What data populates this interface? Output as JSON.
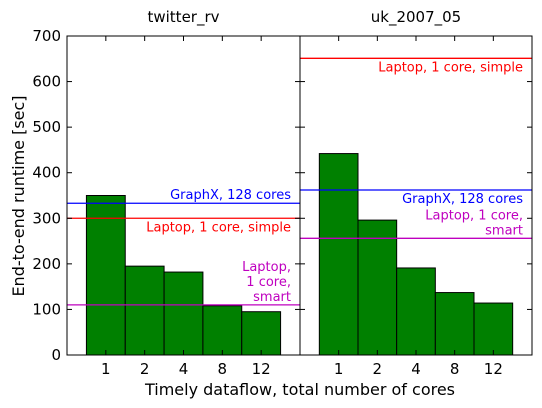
{
  "chart_data": {
    "type": "bar",
    "ylabel": "End-to-end runtime [sec]",
    "xlabel": "Timely dataflow, total number of cores",
    "ylim": [
      0,
      700
    ],
    "yticks": [
      0,
      100,
      200,
      300,
      400,
      500,
      600,
      700
    ],
    "categories": [
      "1",
      "2",
      "4",
      "8",
      "12"
    ],
    "bar_color": "#008000",
    "panels": [
      {
        "title": "twitter_rv",
        "values": [
          350,
          195,
          182,
          108,
          95
        ],
        "reference_lines": [
          {
            "label": "GraphX, 128 cores",
            "value": 333,
            "color": "#0000ff"
          },
          {
            "label": "Laptop, 1 core, simple",
            "value": 300,
            "color": "#ff0000"
          },
          {
            "label": "Laptop,\n1 core,\nsmart",
            "value": 110,
            "color": "#bf00bf"
          }
        ]
      },
      {
        "title": "uk_2007_05",
        "values": [
          442,
          296,
          191,
          137,
          114
        ],
        "reference_lines": [
          {
            "label": "Laptop, 1 core, simple",
            "value": 651,
            "color": "#ff0000"
          },
          {
            "label": "GraphX, 128 cores",
            "value": 362,
            "color": "#0000ff"
          },
          {
            "label": "Laptop, 1 core,\nsmart",
            "value": 256,
            "color": "#bf00bf"
          }
        ]
      }
    ]
  }
}
